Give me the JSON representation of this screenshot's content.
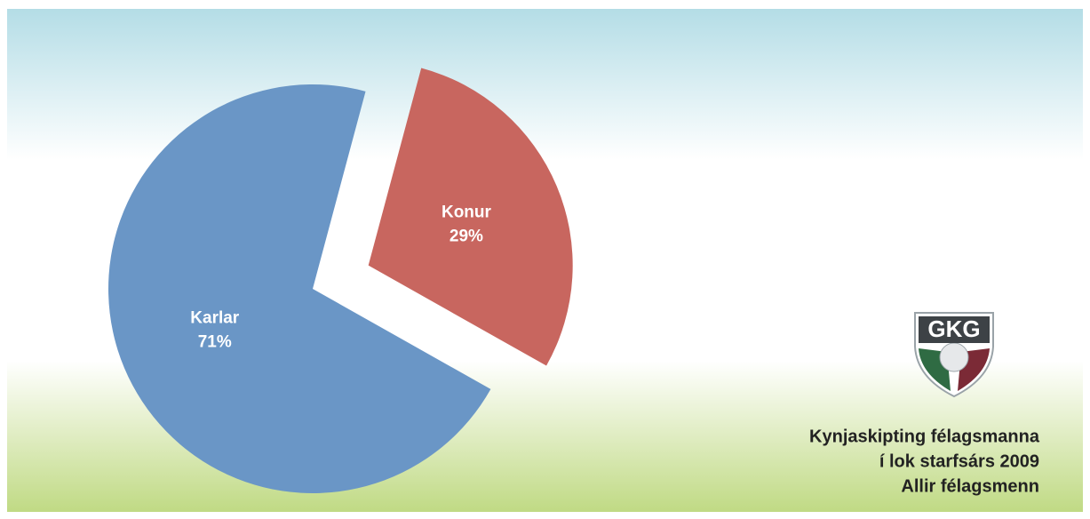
{
  "chart_data": {
    "type": "pie",
    "title": [
      "Kynjaskipting félagsmanna",
      "í lok starfsárs 2009",
      "Allir félagsmenn"
    ],
    "logo": "GKG",
    "categories": [
      "Konur",
      "Karlar"
    ],
    "values": [
      29,
      71
    ],
    "value_labels": [
      "29%",
      "71%"
    ],
    "colors": [
      "#c8665f",
      "#6a96c6"
    ]
  }
}
